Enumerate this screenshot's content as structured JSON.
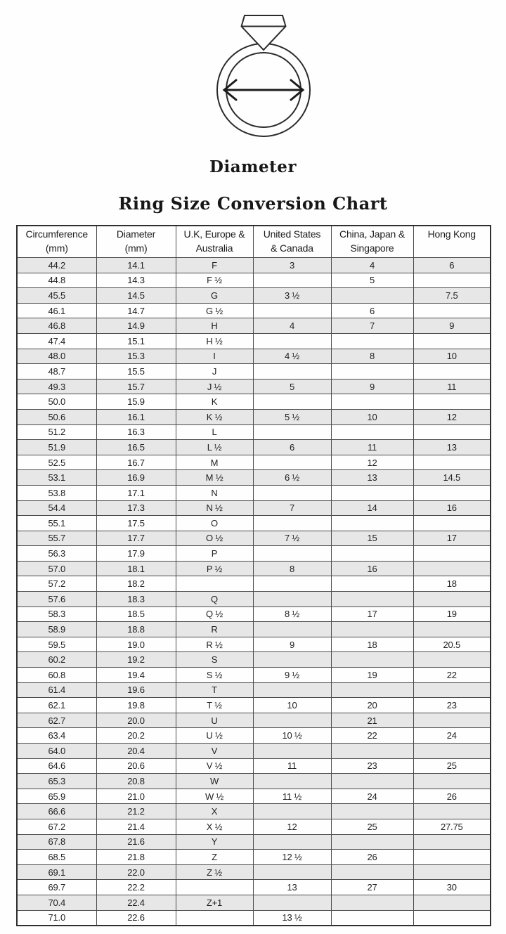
{
  "figure": {
    "caption": "Diameter",
    "icon": "ring-with-diamond-and-diameter-arrow"
  },
  "title": "Ring Size Conversion Chart",
  "colors": {
    "shaded_row": "#e7e7e7",
    "border": "#4b4b4b",
    "outer_border": "#2f2f2f",
    "text": "#1c1c1c",
    "background": "#fefefe"
  },
  "chart_data": {
    "type": "table",
    "title": "Ring Size Conversion Chart",
    "columns": [
      "Circumference (mm)",
      "Diameter (mm)",
      "U.K, Europe & Australia",
      "United States & Canada",
      "China, Japan & Singapore",
      "Hong Kong"
    ],
    "headers": [
      {
        "line1": "Circumference",
        "line2": "(mm)"
      },
      {
        "line1": "Diameter",
        "line2": "(mm)"
      },
      {
        "line1": "U.K, Europe &",
        "line2": "Australia"
      },
      {
        "line1": "United States",
        "line2": "& Canada"
      },
      {
        "line1": "China, Japan &",
        "line2": "Singapore"
      },
      {
        "line1": "Hong Kong",
        "line2": ""
      }
    ],
    "rows": [
      [
        "44.2",
        "14.1",
        "F",
        "3",
        "4",
        "6"
      ],
      [
        "44.8",
        "14.3",
        "F ½",
        "",
        "5",
        ""
      ],
      [
        "45.5",
        "14.5",
        "G",
        "3 ½",
        "",
        "7.5"
      ],
      [
        "46.1",
        "14.7",
        "G ½",
        "",
        "6",
        ""
      ],
      [
        "46.8",
        "14.9",
        "H",
        "4",
        "7",
        "9"
      ],
      [
        "47.4",
        "15.1",
        "H ½",
        "",
        "",
        ""
      ],
      [
        "48.0",
        "15.3",
        "I",
        "4 ½",
        "8",
        "10"
      ],
      [
        "48.7",
        "15.5",
        "J",
        "",
        "",
        ""
      ],
      [
        "49.3",
        "15.7",
        "J ½",
        "5",
        "9",
        "11"
      ],
      [
        "50.0",
        "15.9",
        "K",
        "",
        "",
        ""
      ],
      [
        "50.6",
        "16.1",
        "K ½",
        "5 ½",
        "10",
        "12"
      ],
      [
        "51.2",
        "16.3",
        "L",
        "",
        "",
        ""
      ],
      [
        "51.9",
        "16.5",
        "L ½",
        "6",
        "11",
        "13"
      ],
      [
        "52.5",
        "16.7",
        "M",
        "",
        "12",
        ""
      ],
      [
        "53.1",
        "16.9",
        "M ½",
        "6 ½",
        "13",
        "14.5"
      ],
      [
        "53.8",
        "17.1",
        "N",
        "",
        "",
        ""
      ],
      [
        "54.4",
        "17.3",
        "N ½",
        "7",
        "14",
        "16"
      ],
      [
        "55.1",
        "17.5",
        "O",
        "",
        "",
        ""
      ],
      [
        "55.7",
        "17.7",
        "O ½",
        "7 ½",
        "15",
        "17"
      ],
      [
        "56.3",
        "17.9",
        "P",
        "",
        "",
        ""
      ],
      [
        "57.0",
        "18.1",
        "P ½",
        "8",
        "16",
        ""
      ],
      [
        "57.2",
        "18.2",
        "",
        "",
        "",
        "18"
      ],
      [
        "57.6",
        "18.3",
        "Q",
        "",
        "",
        ""
      ],
      [
        "58.3",
        "18.5",
        "Q ½",
        "8 ½",
        "17",
        "19"
      ],
      [
        "58.9",
        "18.8",
        "R",
        "",
        "",
        ""
      ],
      [
        "59.5",
        "19.0",
        "R ½",
        "9",
        "18",
        "20.5"
      ],
      [
        "60.2",
        "19.2",
        "S",
        "",
        "",
        ""
      ],
      [
        "60.8",
        "19.4",
        "S ½",
        "9 ½",
        "19",
        "22"
      ],
      [
        "61.4",
        "19.6",
        "T",
        "",
        "",
        ""
      ],
      [
        "62.1",
        "19.8",
        "T ½",
        "10",
        "20",
        "23"
      ],
      [
        "62.7",
        "20.0",
        "U",
        "",
        "21",
        ""
      ],
      [
        "63.4",
        "20.2",
        "U ½",
        "10 ½",
        "22",
        "24"
      ],
      [
        "64.0",
        "20.4",
        "V",
        "",
        "",
        ""
      ],
      [
        "64.6",
        "20.6",
        "V ½",
        "11",
        "23",
        "25"
      ],
      [
        "65.3",
        "20.8",
        "W",
        "",
        "",
        ""
      ],
      [
        "65.9",
        "21.0",
        "W ½",
        "11 ½",
        "24",
        "26"
      ],
      [
        "66.6",
        "21.2",
        "X",
        "",
        "",
        ""
      ],
      [
        "67.2",
        "21.4",
        "X ½",
        "12",
        "25",
        "27.75"
      ],
      [
        "67.8",
        "21.6",
        "Y",
        "",
        "",
        ""
      ],
      [
        "68.5",
        "21.8",
        "Z",
        "12 ½",
        "26",
        ""
      ],
      [
        "69.1",
        "22.0",
        "Z ½",
        "",
        "",
        ""
      ],
      [
        "69.7",
        "22.2",
        "",
        "13",
        "27",
        "30"
      ],
      [
        "70.4",
        "22.4",
        "Z+1",
        "",
        "",
        ""
      ],
      [
        "71.0",
        "22.6",
        "",
        "13 ½",
        "",
        ""
      ]
    ],
    "layout_hints": {
      "row_shading": "alternating, first data row shaded",
      "grid": "on"
    }
  }
}
